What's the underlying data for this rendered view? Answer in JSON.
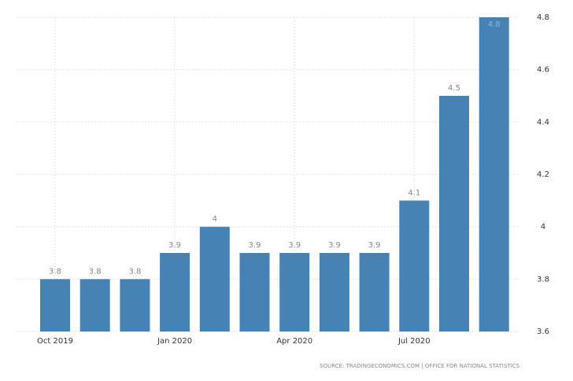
{
  "chart_data": {
    "type": "bar",
    "categories": [
      "Oct 2019",
      null,
      null,
      "Jan 2020",
      null,
      null,
      "Apr 2020",
      null,
      null,
      "Jul 2020",
      null,
      null
    ],
    "values": [
      3.8,
      3.8,
      3.8,
      3.9,
      4,
      3.9,
      3.9,
      3.9,
      3.9,
      4.1,
      4.5,
      4.8
    ],
    "color": "#4682b4",
    "ylim": [
      3.6,
      4.8
    ],
    "yticks": [
      3.6,
      3.8,
      4,
      4.2,
      4.4,
      4.6,
      4.8
    ],
    "grid": true,
    "source": "SOURCE: TRADINGECONOMICS.COM | OFFICE FOR NATIONAL STATISTICS"
  }
}
